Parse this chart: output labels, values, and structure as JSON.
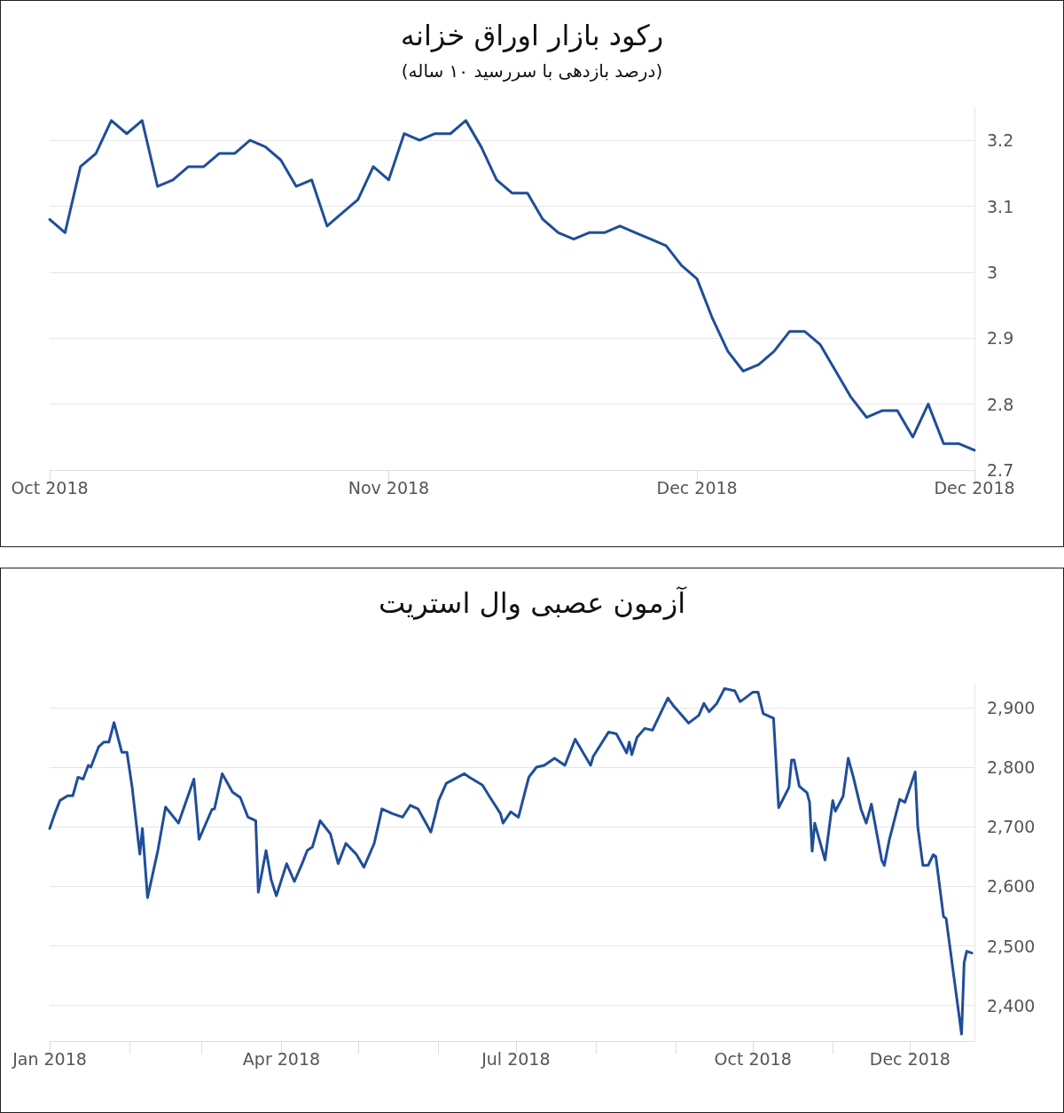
{
  "chart_data": [
    {
      "type": "line",
      "title": "رکود بازار اوراق خزانه",
      "subtitle": "(درصد بازدهی با سررسید ۱۰ ساله)",
      "categories": [
        "Oct 2018",
        null,
        null,
        null,
        null,
        null,
        null,
        null,
        null,
        null,
        null,
        null,
        null,
        null,
        null,
        null,
        null,
        null,
        null,
        null,
        null,
        null,
        "Nov 2018",
        null,
        null,
        null,
        null,
        null,
        null,
        null,
        null,
        null,
        null,
        null,
        null,
        null,
        null,
        null,
        null,
        null,
        null,
        null,
        "Dec 2018",
        null,
        null,
        null,
        null,
        null,
        null,
        null,
        null,
        null,
        null,
        null,
        null,
        null,
        null,
        null,
        null,
        null,
        "Dec 2018"
      ],
      "series": [
        {
          "color": "#1f4e9a",
          "values": [
            3.08,
            3.06,
            3.16,
            3.18,
            3.23,
            3.21,
            3.23,
            3.13,
            3.14,
            3.16,
            3.16,
            3.18,
            3.18,
            3.2,
            3.19,
            3.17,
            3.13,
            3.14,
            3.07,
            3.09,
            3.11,
            3.16,
            3.14,
            3.21,
            3.2,
            3.21,
            3.21,
            3.23,
            3.19,
            3.14,
            3.12,
            3.12,
            3.08,
            3.06,
            3.05,
            3.06,
            3.06,
            3.07,
            3.06,
            3.05,
            3.04,
            3.01,
            2.99,
            2.93,
            2.88,
            2.85,
            2.86,
            2.88,
            2.91,
            2.91,
            2.89,
            2.85,
            2.81,
            2.78,
            2.79,
            2.79,
            2.75,
            2.8,
            2.74,
            2.74,
            2.73
          ]
        }
      ],
      "ylim": [
        2.7,
        3.25
      ],
      "yticks": [
        2.7,
        2.8,
        2.9,
        3,
        3.1,
        3.2
      ],
      "grid": "y",
      "marker": "none",
      "line_style": "solid"
    },
    {
      "type": "line",
      "title": "آزمون عصبی وال استریت",
      "series": [
        {
          "color": "#1f4e9a",
          "x": [
            "2018-01-01",
            "2018-01-03",
            "2018-01-05",
            "2018-01-08",
            "2018-01-10",
            "2018-01-12",
            "2018-01-14",
            "2018-01-16",
            "2018-01-17",
            "2018-01-20",
            "2018-01-22",
            "2018-01-24",
            "2018-01-26",
            "2018-01-29",
            "2018-01-31",
            "2018-02-02",
            "2018-02-05",
            "2018-02-06",
            "2018-02-08",
            "2018-02-12",
            "2018-02-15",
            "2018-02-20",
            "2018-02-26",
            "2018-02-28",
            "2018-03-05",
            "2018-03-06",
            "2018-03-09",
            "2018-03-13",
            "2018-03-16",
            "2018-03-19",
            "2018-03-22",
            "2018-03-23",
            "2018-03-26",
            "2018-03-28",
            "2018-03-30",
            "2018-04-03",
            "2018-04-06",
            "2018-04-09",
            "2018-04-11",
            "2018-04-13",
            "2018-04-16",
            "2018-04-20",
            "2018-04-23",
            "2018-04-26",
            "2018-04-30",
            "2018-05-03",
            "2018-05-07",
            "2018-05-10",
            "2018-05-14",
            "2018-05-18",
            "2018-05-21",
            "2018-05-24",
            "2018-05-29",
            "2018-05-31",
            "2018-06-01",
            "2018-06-04",
            "2018-06-11",
            "2018-06-13",
            "2018-06-18",
            "2018-06-21",
            "2018-06-25",
            "2018-06-26",
            "2018-06-29",
            "2018-07-02",
            "2018-07-06",
            "2018-07-09",
            "2018-07-12",
            "2018-07-16",
            "2018-07-20",
            "2018-07-24",
            "2018-07-30",
            "2018-07-31",
            "2018-08-06",
            "2018-08-09",
            "2018-08-13",
            "2018-08-14",
            "2018-08-15",
            "2018-08-17",
            "2018-08-20",
            "2018-08-23",
            "2018-08-27",
            "2018-08-29",
            "2018-08-31",
            "2018-09-06",
            "2018-09-10",
            "2018-09-12",
            "2018-09-14",
            "2018-09-17",
            "2018-09-20",
            "2018-09-24",
            "2018-09-26",
            "2018-09-28",
            "2018-10-01",
            "2018-10-03",
            "2018-10-05",
            "2018-10-09",
            "2018-10-11",
            "2018-10-15",
            "2018-10-16",
            "2018-10-17",
            "2018-10-19",
            "2018-10-22",
            "2018-10-23",
            "2018-10-24",
            "2018-10-25",
            "2018-10-29",
            "2018-11-01",
            "2018-11-02",
            "2018-11-05",
            "2018-11-07",
            "2018-11-09",
            "2018-11-12",
            "2018-11-14",
            "2018-11-16",
            "2018-11-20",
            "2018-11-21",
            "2018-11-23",
            "2018-11-27",
            "2018-11-29",
            "2018-12-03",
            "2018-12-04",
            "2018-12-06",
            "2018-12-08",
            "2018-12-10",
            "2018-12-11",
            "2018-12-14",
            "2018-12-15",
            "2018-12-21",
            "2018-12-22",
            "2018-12-23",
            "2018-12-25"
          ],
          "values": [
            2697,
            2722,
            2744,
            2752,
            2752,
            2783,
            2780,
            2803,
            2800,
            2834,
            2842,
            2842,
            2875,
            2825,
            2825,
            2767,
            2654,
            2697,
            2581,
            2660,
            2733,
            2706,
            2780,
            2679,
            2729,
            2730,
            2789,
            2758,
            2749,
            2716,
            2710,
            2590,
            2660,
            2611,
            2584,
            2638,
            2608,
            2638,
            2660,
            2666,
            2710,
            2688,
            2638,
            2672,
            2654,
            2632,
            2672,
            2730,
            2722,
            2716,
            2736,
            2730,
            2691,
            2725,
            2744,
            2773,
            2789,
            2783,
            2770,
            2749,
            2722,
            2706,
            2725,
            2716,
            2783,
            2800,
            2803,
            2815,
            2803,
            2847,
            2803,
            2818,
            2859,
            2856,
            2824,
            2842,
            2821,
            2850,
            2865,
            2862,
            2898,
            2916,
            2904,
            2874,
            2887,
            2907,
            2893,
            2907,
            2932,
            2928,
            2910,
            2916,
            2926,
            2926,
            2890,
            2882,
            2732,
            2766,
            2812,
            2812,
            2768,
            2757,
            2741,
            2659,
            2706,
            2644,
            2744,
            2726,
            2751,
            2815,
            2783,
            2729,
            2706,
            2738,
            2644,
            2635,
            2679,
            2746,
            2741,
            2792,
            2700,
            2635,
            2635,
            2653,
            2650,
            2549,
            2546,
            2352,
            2472,
            2491,
            2488
          ]
        }
      ],
      "xlim": [
        "2018-01-01",
        "2018-12-26"
      ],
      "xticks": [
        {
          "value": "2018-01-01",
          "label": "Jan 2018"
        },
        {
          "value": "2018-02-01",
          "label": null
        },
        {
          "value": "2018-03-01",
          "label": null
        },
        {
          "value": "2018-04-01",
          "label": "Apr 2018"
        },
        {
          "value": "2018-05-01",
          "label": null
        },
        {
          "value": "2018-06-01",
          "label": null
        },
        {
          "value": "2018-07-01",
          "label": "Jul 2018"
        },
        {
          "value": "2018-08-01",
          "label": null
        },
        {
          "value": "2018-09-01",
          "label": null
        },
        {
          "value": "2018-10-01",
          "label": "Oct 2018"
        },
        {
          "value": "2018-11-01",
          "label": null
        },
        {
          "value": "2018-12-01",
          "label": "Dec 2018"
        }
      ],
      "ylim": [
        2340,
        2940
      ],
      "yticks": [
        {
          "value": 2400,
          "label": "2,400"
        },
        {
          "value": 2500,
          "label": "2,500"
        },
        {
          "value": 2600,
          "label": "2,600"
        },
        {
          "value": 2700,
          "label": "2,700"
        },
        {
          "value": 2800,
          "label": "2,800"
        },
        {
          "value": 2900,
          "label": "2,900"
        }
      ],
      "grid": "y",
      "marker": "none",
      "line_style": "solid"
    }
  ]
}
